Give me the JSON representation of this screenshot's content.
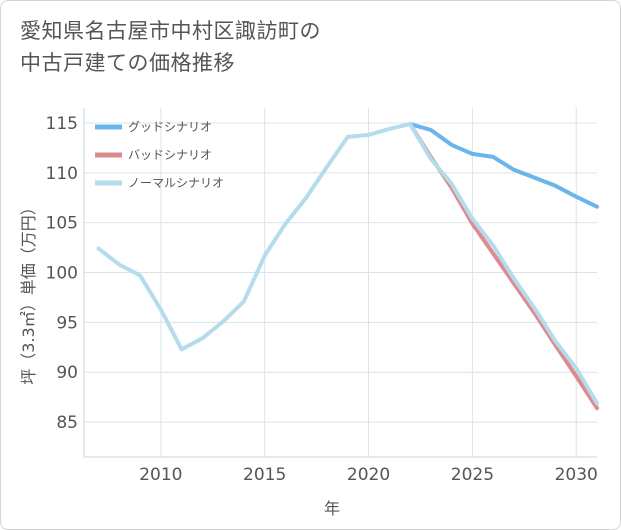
{
  "title_line1": "愛知県名古屋市中村区諏訪町の",
  "title_line2": "中古戸建ての価格推移",
  "chart_data": {
    "type": "line",
    "xlabel": "年",
    "ylabel": "坪（3.3㎡）単価（万円）",
    "xlim": [
      2006.3,
      2031
    ],
    "ylim": [
      81.5,
      116.5
    ],
    "xticks": [
      2010,
      2015,
      2020,
      2025,
      2030
    ],
    "yticks": [
      85,
      90,
      95,
      100,
      105,
      110,
      115
    ],
    "grid": true,
    "legend_position": "top-left",
    "series": [
      {
        "name": "グッドシナリオ",
        "color": "#6cb4ec",
        "x": [
          2022,
          2023,
          2024,
          2025,
          2026,
          2027,
          2028,
          2029,
          2030,
          2031
        ],
        "values": [
          114.9,
          114.3,
          112.8,
          111.9,
          111.6,
          110.3,
          109.5,
          108.7,
          107.6,
          106.6
        ]
      },
      {
        "name": "バッドシナリオ",
        "color": "#dc8c8e",
        "x": [
          2022,
          2023,
          2024,
          2025,
          2026,
          2027,
          2028,
          2029,
          2030,
          2031
        ],
        "values": [
          114.9,
          111.6,
          108.5,
          104.9,
          101.9,
          98.9,
          95.9,
          92.7,
          89.6,
          86.4
        ]
      },
      {
        "name": "ノーマルシナリオ",
        "color": "#b5dcec",
        "x": [
          2007,
          2008,
          2009,
          2010,
          2011,
          2012,
          2013,
          2014,
          2015,
          2016,
          2017,
          2018,
          2019,
          2020,
          2021,
          2022,
          2023,
          2024,
          2025,
          2026,
          2027,
          2028,
          2029,
          2030,
          2031
        ],
        "values": [
          102.4,
          100.8,
          99.7,
          96.3,
          92.3,
          93.4,
          95.1,
          97.1,
          101.7,
          104.9,
          107.5,
          110.6,
          113.6,
          113.8,
          114.4,
          114.9,
          111.4,
          108.9,
          105.4,
          102.7,
          99.4,
          96.4,
          93.1,
          90.4,
          86.9
        ]
      }
    ]
  }
}
